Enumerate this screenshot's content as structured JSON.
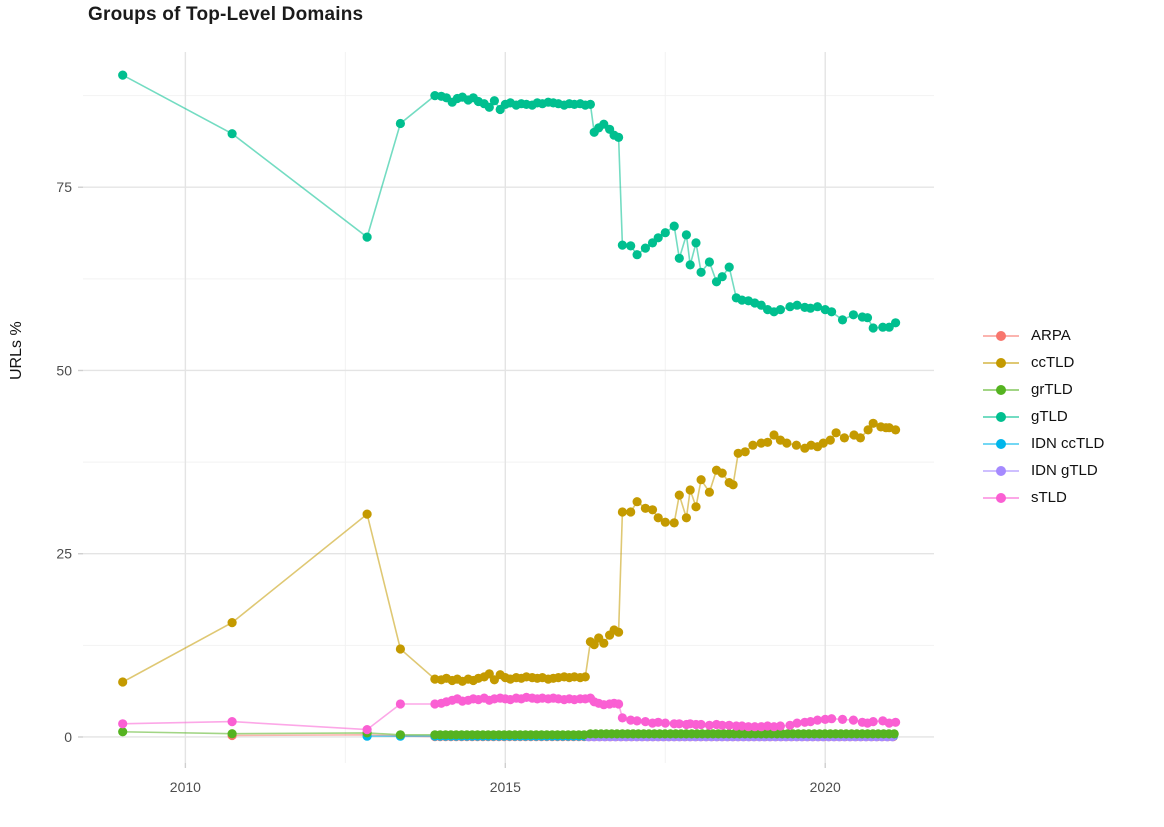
{
  "chart_data": {
    "type": "scatter-line",
    "title": "Groups of Top-Level Domains",
    "xlabel": "",
    "ylabel": "URLs %",
    "legend_position": "right",
    "grid": true,
    "xlim": [
      2008.4,
      2021.7
    ],
    "ylim": [
      -3.55,
      93.45
    ],
    "x_ticks": [
      {
        "label": "2010",
        "value": 2010
      },
      {
        "label": "2015",
        "value": 2015
      },
      {
        "label": "2020",
        "value": 2020
      }
    ],
    "y_ticks": [
      {
        "label": "0",
        "value": 0
      },
      {
        "label": "25",
        "value": 25
      },
      {
        "label": "50",
        "value": 50
      },
      {
        "label": "75",
        "value": 75
      }
    ],
    "x_minor_gridlines": [
      2012.5,
      2017.5
    ],
    "y_minor_gridlines": [
      12.5,
      37.5,
      62.5,
      87.5
    ],
    "z_order": [
      "ARPA",
      "ccTLD",
      "IDN ccTLD",
      "IDN gTLD",
      "grTLD",
      "gTLD",
      "sTLD"
    ],
    "series": [
      {
        "name": "ARPA",
        "color": "#F8766D",
        "points": [
          [
            2010.73,
            0.2
          ],
          [
            2012.84,
            0.3
          ],
          [
            2013.36,
            0.15
          ]
        ],
        "flat": [
          {
            "from": 2013.9,
            "to": 2021.1,
            "step": 0.0833,
            "value": 0.05
          }
        ]
      },
      {
        "name": "ccTLD",
        "color": "#C49A00",
        "points": [
          [
            2009.02,
            7.5
          ],
          [
            2010.73,
            15.6
          ],
          [
            2012.84,
            30.4
          ],
          [
            2013.36,
            12.0
          ],
          [
            2013.9,
            7.9
          ],
          [
            2014.0,
            7.8
          ],
          [
            2014.08,
            8.0
          ],
          [
            2014.17,
            7.7
          ],
          [
            2014.25,
            7.9
          ],
          [
            2014.33,
            7.6
          ],
          [
            2014.42,
            7.9
          ],
          [
            2014.5,
            7.7
          ],
          [
            2014.58,
            8.0
          ],
          [
            2014.67,
            8.2
          ],
          [
            2014.75,
            8.6
          ],
          [
            2014.83,
            7.8
          ],
          [
            2014.92,
            8.5
          ],
          [
            2015.0,
            8.1
          ],
          [
            2015.08,
            7.9
          ],
          [
            2015.17,
            8.1
          ],
          [
            2015.25,
            8.0
          ],
          [
            2015.33,
            8.2
          ],
          [
            2015.42,
            8.1
          ],
          [
            2015.5,
            8.0
          ],
          [
            2015.58,
            8.1
          ],
          [
            2015.67,
            7.9
          ],
          [
            2015.75,
            8.0
          ],
          [
            2015.83,
            8.1
          ],
          [
            2015.92,
            8.2
          ],
          [
            2016.0,
            8.1
          ],
          [
            2016.08,
            8.2
          ],
          [
            2016.17,
            8.1
          ],
          [
            2016.25,
            8.2
          ],
          [
            2016.33,
            13.0
          ],
          [
            2016.39,
            12.6
          ],
          [
            2016.46,
            13.5
          ],
          [
            2016.54,
            12.8
          ],
          [
            2016.63,
            13.9
          ],
          [
            2016.7,
            14.6
          ],
          [
            2016.77,
            14.3
          ],
          [
            2016.83,
            30.7
          ],
          [
            2016.96,
            30.7
          ],
          [
            2017.06,
            32.1
          ],
          [
            2017.19,
            31.2
          ],
          [
            2017.3,
            31.0
          ],
          [
            2017.39,
            29.9
          ],
          [
            2017.5,
            29.3
          ],
          [
            2017.64,
            29.2
          ],
          [
            2017.72,
            33.0
          ],
          [
            2017.83,
            29.9
          ],
          [
            2017.89,
            33.7
          ],
          [
            2017.98,
            31.4
          ],
          [
            2018.06,
            35.1
          ],
          [
            2018.19,
            33.4
          ],
          [
            2018.3,
            36.4
          ],
          [
            2018.39,
            36.0
          ],
          [
            2018.5,
            34.7
          ],
          [
            2018.56,
            34.4
          ],
          [
            2018.64,
            38.7
          ],
          [
            2018.75,
            38.9
          ],
          [
            2018.87,
            39.8
          ],
          [
            2019.0,
            40.1
          ],
          [
            2019.1,
            40.2
          ],
          [
            2019.2,
            41.2
          ],
          [
            2019.3,
            40.5
          ],
          [
            2019.4,
            40.1
          ],
          [
            2019.55,
            39.8
          ],
          [
            2019.68,
            39.4
          ],
          [
            2019.78,
            39.8
          ],
          [
            2019.88,
            39.6
          ],
          [
            2019.97,
            40.1
          ],
          [
            2020.08,
            40.5
          ],
          [
            2020.17,
            41.5
          ],
          [
            2020.3,
            40.8
          ],
          [
            2020.45,
            41.2
          ],
          [
            2020.55,
            40.8
          ],
          [
            2020.67,
            41.9
          ],
          [
            2020.75,
            42.8
          ],
          [
            2020.87,
            42.3
          ],
          [
            2020.95,
            42.2
          ],
          [
            2021.0,
            42.2
          ],
          [
            2021.1,
            41.9
          ]
        ]
      },
      {
        "name": "grTLD",
        "color": "#55B320",
        "points": [
          [
            2009.02,
            0.7
          ],
          [
            2010.73,
            0.45
          ],
          [
            2012.84,
            0.55
          ],
          [
            2013.36,
            0.3
          ]
        ],
        "flat": [
          {
            "from": 2013.9,
            "to": 2016.25,
            "step": 0.0833,
            "value": 0.3
          },
          {
            "from": 2016.33,
            "to": 2021.1,
            "step": 0.0833,
            "value": 0.42
          }
        ]
      },
      {
        "name": "gTLD",
        "color": "#00BF8F",
        "points": [
          [
            2009.02,
            90.3
          ],
          [
            2010.73,
            82.3
          ],
          [
            2012.84,
            68.2
          ],
          [
            2013.36,
            83.7
          ],
          [
            2013.9,
            87.5
          ],
          [
            2014.0,
            87.4
          ],
          [
            2014.08,
            87.2
          ],
          [
            2014.17,
            86.6
          ],
          [
            2014.25,
            87.1
          ],
          [
            2014.33,
            87.3
          ],
          [
            2014.42,
            86.9
          ],
          [
            2014.5,
            87.2
          ],
          [
            2014.58,
            86.7
          ],
          [
            2014.67,
            86.4
          ],
          [
            2014.75,
            85.9
          ],
          [
            2014.83,
            86.8
          ],
          [
            2014.92,
            85.6
          ],
          [
            2015.0,
            86.3
          ],
          [
            2015.08,
            86.5
          ],
          [
            2015.17,
            86.2
          ],
          [
            2015.25,
            86.4
          ],
          [
            2015.33,
            86.3
          ],
          [
            2015.42,
            86.2
          ],
          [
            2015.5,
            86.5
          ],
          [
            2015.58,
            86.4
          ],
          [
            2015.67,
            86.6
          ],
          [
            2015.75,
            86.5
          ],
          [
            2015.83,
            86.4
          ],
          [
            2015.92,
            86.2
          ],
          [
            2016.0,
            86.4
          ],
          [
            2016.08,
            86.3
          ],
          [
            2016.17,
            86.4
          ],
          [
            2016.25,
            86.2
          ],
          [
            2016.33,
            86.3
          ],
          [
            2016.39,
            82.5
          ],
          [
            2016.46,
            83.1
          ],
          [
            2016.54,
            83.6
          ],
          [
            2016.63,
            82.9
          ],
          [
            2016.7,
            82.1
          ],
          [
            2016.77,
            81.8
          ],
          [
            2016.83,
            67.1
          ],
          [
            2016.96,
            67.0
          ],
          [
            2017.06,
            65.8
          ],
          [
            2017.19,
            66.7
          ],
          [
            2017.3,
            67.4
          ],
          [
            2017.39,
            68.1
          ],
          [
            2017.5,
            68.8
          ],
          [
            2017.64,
            69.7
          ],
          [
            2017.72,
            65.3
          ],
          [
            2017.83,
            68.5
          ],
          [
            2017.89,
            64.4
          ],
          [
            2017.98,
            67.4
          ],
          [
            2018.06,
            63.4
          ],
          [
            2018.19,
            64.8
          ],
          [
            2018.3,
            62.1
          ],
          [
            2018.39,
            62.8
          ],
          [
            2018.5,
            64.1
          ],
          [
            2018.61,
            59.9
          ],
          [
            2018.7,
            59.6
          ],
          [
            2018.8,
            59.5
          ],
          [
            2018.9,
            59.2
          ],
          [
            2019.0,
            58.9
          ],
          [
            2019.1,
            58.3
          ],
          [
            2019.2,
            58.0
          ],
          [
            2019.3,
            58.3
          ],
          [
            2019.45,
            58.7
          ],
          [
            2019.56,
            58.9
          ],
          [
            2019.68,
            58.6
          ],
          [
            2019.77,
            58.5
          ],
          [
            2019.88,
            58.7
          ],
          [
            2020.0,
            58.3
          ],
          [
            2020.1,
            58.0
          ],
          [
            2020.27,
            56.9
          ],
          [
            2020.44,
            57.6
          ],
          [
            2020.58,
            57.3
          ],
          [
            2020.66,
            57.2
          ],
          [
            2020.75,
            55.8
          ],
          [
            2020.9,
            55.9
          ],
          [
            2021.0,
            55.9
          ],
          [
            2021.1,
            56.5
          ]
        ]
      },
      {
        "name": "IDN ccTLD",
        "color": "#00B6EB",
        "points": [
          [
            2012.84,
            0.1
          ],
          [
            2013.36,
            0.1
          ]
        ],
        "flat": [
          {
            "from": 2013.9,
            "to": 2021.1,
            "step": 0.0833,
            "value": 0.12
          }
        ]
      },
      {
        "name": "IDN gTLD",
        "color": "#A58AFF",
        "points": [],
        "flat": [
          {
            "from": 2016.3,
            "to": 2021.1,
            "step": 0.0833,
            "value": 0.03
          }
        ]
      },
      {
        "name": "sTLD",
        "color": "#FA5FD3",
        "points": [
          [
            2009.02,
            1.8
          ],
          [
            2010.73,
            2.1
          ],
          [
            2012.84,
            1.0
          ],
          [
            2013.36,
            4.5
          ],
          [
            2013.9,
            4.5
          ],
          [
            2014.0,
            4.6
          ],
          [
            2014.08,
            4.8
          ],
          [
            2014.17,
            5.0
          ],
          [
            2014.25,
            5.2
          ],
          [
            2014.33,
            4.9
          ],
          [
            2014.42,
            5.0
          ],
          [
            2014.5,
            5.2
          ],
          [
            2014.58,
            5.1
          ],
          [
            2014.67,
            5.3
          ],
          [
            2014.75,
            5.0
          ],
          [
            2014.83,
            5.2
          ],
          [
            2014.92,
            5.3
          ],
          [
            2015.0,
            5.2
          ],
          [
            2015.08,
            5.1
          ],
          [
            2015.17,
            5.3
          ],
          [
            2015.25,
            5.2
          ],
          [
            2015.33,
            5.4
          ],
          [
            2015.42,
            5.3
          ],
          [
            2015.5,
            5.2
          ],
          [
            2015.58,
            5.3
          ],
          [
            2015.67,
            5.2
          ],
          [
            2015.75,
            5.3
          ],
          [
            2015.83,
            5.2
          ],
          [
            2015.92,
            5.1
          ],
          [
            2016.0,
            5.2
          ],
          [
            2016.08,
            5.1
          ],
          [
            2016.17,
            5.2
          ],
          [
            2016.25,
            5.2
          ],
          [
            2016.33,
            5.3
          ],
          [
            2016.39,
            4.8
          ],
          [
            2016.46,
            4.6
          ],
          [
            2016.54,
            4.4
          ],
          [
            2016.63,
            4.5
          ],
          [
            2016.7,
            4.6
          ],
          [
            2016.77,
            4.5
          ],
          [
            2016.83,
            2.6
          ],
          [
            2016.96,
            2.3
          ],
          [
            2017.06,
            2.2
          ],
          [
            2017.19,
            2.1
          ],
          [
            2017.3,
            1.9
          ],
          [
            2017.39,
            2.0
          ],
          [
            2017.5,
            1.9
          ],
          [
            2017.64,
            1.8
          ],
          [
            2017.72,
            1.8
          ],
          [
            2017.83,
            1.7
          ],
          [
            2017.89,
            1.8
          ],
          [
            2017.98,
            1.7
          ],
          [
            2018.06,
            1.7
          ],
          [
            2018.19,
            1.6
          ],
          [
            2018.3,
            1.7
          ],
          [
            2018.39,
            1.6
          ],
          [
            2018.5,
            1.6
          ],
          [
            2018.61,
            1.5
          ],
          [
            2018.7,
            1.5
          ],
          [
            2018.8,
            1.4
          ],
          [
            2018.9,
            1.4
          ],
          [
            2019.0,
            1.4
          ],
          [
            2019.1,
            1.5
          ],
          [
            2019.2,
            1.4
          ],
          [
            2019.3,
            1.5
          ],
          [
            2019.45,
            1.6
          ],
          [
            2019.56,
            1.9
          ],
          [
            2019.68,
            2.0
          ],
          [
            2019.77,
            2.1
          ],
          [
            2019.88,
            2.3
          ],
          [
            2020.0,
            2.4
          ],
          [
            2020.1,
            2.5
          ],
          [
            2020.27,
            2.4
          ],
          [
            2020.44,
            2.3
          ],
          [
            2020.58,
            2.0
          ],
          [
            2020.66,
            1.9
          ],
          [
            2020.75,
            2.1
          ],
          [
            2020.9,
            2.2
          ],
          [
            2021.0,
            1.9
          ],
          [
            2021.1,
            2.0
          ]
        ]
      }
    ]
  },
  "style": {
    "major_grid_color": "#e4e4e4",
    "minor_grid_color": "#f2f2f2",
    "tick_color": "#cfcfcf",
    "axis_text_color": "#4d4d4d"
  }
}
